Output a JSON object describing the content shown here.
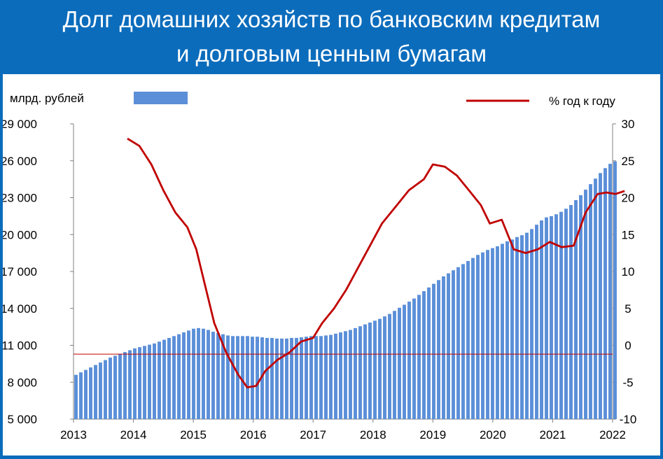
{
  "title": {
    "line1": "Долг домашних хозяйств по банковским кредитам",
    "line2": "и долговым ценным бумагам"
  },
  "chart_data": {
    "type": "bar+line",
    "left_axis_unit": "млрд. рублей",
    "right_axis_unit": "% год к году",
    "ylim_left": [
      5000,
      29000
    ],
    "ylim_right": [
      -10,
      30
    ],
    "y_ticks_left": [
      "5 000",
      "8 000",
      "11 000",
      "14 000",
      "17 000",
      "20 000",
      "23 000",
      "26 000",
      "29 000"
    ],
    "y_ticks_right": [
      "-10",
      "-5",
      "0",
      "5",
      "10",
      "15",
      "20",
      "25",
      "30"
    ],
    "x_ticks": [
      "2013",
      "2014",
      "2015",
      "2016",
      "2017",
      "2018",
      "2019",
      "2020",
      "2021",
      "2022"
    ],
    "reference_line_right": -1.2,
    "colors": {
      "bars": "#5b8fd8",
      "line": "#c00000",
      "reference": "#c00000",
      "background": "#0b6cbc"
    },
    "bars": {
      "name": "млрд. рублей",
      "t_start": 2013.0,
      "t_step": 0.0833,
      "values": [
        8600,
        8800,
        9000,
        9200,
        9400,
        9600,
        9800,
        10000,
        10150,
        10300,
        10450,
        10600,
        10750,
        10850,
        10950,
        11050,
        11150,
        11300,
        11450,
        11600,
        11750,
        11900,
        12050,
        12200,
        12350,
        12400,
        12350,
        12250,
        12100,
        12000,
        11900,
        11800,
        11750,
        11750,
        11750,
        11750,
        11700,
        11700,
        11650,
        11600,
        11600,
        11550,
        11550,
        11550,
        11600,
        11600,
        11650,
        11700,
        11750,
        11750,
        11750,
        11800,
        11850,
        11950,
        12050,
        12150,
        12250,
        12400,
        12550,
        12700,
        12850,
        13000,
        13150,
        13350,
        13550,
        13800,
        14050,
        14300,
        14550,
        14800,
        15100,
        15400,
        15700,
        16000,
        16300,
        16600,
        16850,
        17100,
        17350,
        17600,
        17850,
        18100,
        18350,
        18550,
        18750,
        18900,
        19050,
        19250,
        19450,
        19600,
        19800,
        19950,
        20150,
        20450,
        20800,
        21150,
        21400,
        21500,
        21650,
        21850,
        22100,
        22400,
        22800,
        23200,
        23650,
        24100,
        24550,
        25000,
        25400,
        25750,
        25950
      ]
    },
    "line": {
      "name": "% год к году",
      "points": [
        [
          2013.9,
          28
        ],
        [
          2014.1,
          27
        ],
        [
          2014.3,
          24.5
        ],
        [
          2014.5,
          21
        ],
        [
          2014.7,
          18
        ],
        [
          2014.9,
          16
        ],
        [
          2015.05,
          13
        ],
        [
          2015.2,
          8
        ],
        [
          2015.35,
          3
        ],
        [
          2015.55,
          -1
        ],
        [
          2015.75,
          -4
        ],
        [
          2015.9,
          -5.7
        ],
        [
          2016.05,
          -5.5
        ],
        [
          2016.2,
          -3.5
        ],
        [
          2016.4,
          -2
        ],
        [
          2016.6,
          -1
        ],
        [
          2016.8,
          0.5
        ],
        [
          2017.0,
          1
        ],
        [
          2017.15,
          3
        ],
        [
          2017.35,
          5
        ],
        [
          2017.55,
          7.5
        ],
        [
          2017.75,
          10.5
        ],
        [
          2017.95,
          13.5
        ],
        [
          2018.15,
          16.5
        ],
        [
          2018.4,
          19
        ],
        [
          2018.6,
          21
        ],
        [
          2018.85,
          22.5
        ],
        [
          2019.0,
          24.5
        ],
        [
          2019.2,
          24.2
        ],
        [
          2019.4,
          23
        ],
        [
          2019.6,
          21
        ],
        [
          2019.8,
          19
        ],
        [
          2019.95,
          16.5
        ],
        [
          2020.15,
          17
        ],
        [
          2020.35,
          13
        ],
        [
          2020.55,
          12.5
        ],
        [
          2020.75,
          13
        ],
        [
          2020.95,
          14
        ],
        [
          2021.15,
          13.3
        ],
        [
          2021.35,
          13.5
        ],
        [
          2021.55,
          18
        ],
        [
          2021.75,
          20.5
        ],
        [
          2021.9,
          20.7
        ],
        [
          2022.05,
          20.5
        ],
        [
          2022.2,
          20.9
        ]
      ]
    }
  }
}
